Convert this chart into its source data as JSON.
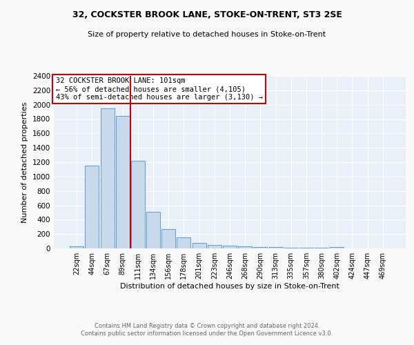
{
  "title1": "32, COCKSTER BROOK LANE, STOKE-ON-TRENT, ST3 2SE",
  "title2": "Size of property relative to detached houses in Stoke-on-Trent",
  "xlabel": "Distribution of detached houses by size in Stoke-on-Trent",
  "ylabel": "Number of detached properties",
  "footer_line1": "Contains HM Land Registry data © Crown copyright and database right 2024.",
  "footer_line2": "Contains public sector information licensed under the Open Government Licence v3.0.",
  "annotation_line1": "32 COCKSTER BROOK LANE: 101sqm",
  "annotation_line2": "← 56% of detached houses are smaller (4,105)",
  "annotation_line3": "43% of semi-detached houses are larger (3,130) →",
  "bar_labels": [
    "22sqm",
    "44sqm",
    "67sqm",
    "89sqm",
    "111sqm",
    "134sqm",
    "156sqm",
    "178sqm",
    "201sqm",
    "223sqm",
    "246sqm",
    "268sqm",
    "290sqm",
    "313sqm",
    "335sqm",
    "357sqm",
    "380sqm",
    "402sqm",
    "424sqm",
    "447sqm",
    "469sqm"
  ],
  "bar_values": [
    30,
    1155,
    1950,
    1840,
    1220,
    510,
    265,
    150,
    80,
    45,
    40,
    25,
    15,
    20,
    10,
    8,
    5,
    20,
    3,
    3,
    2
  ],
  "bar_color": "#c9d9ec",
  "bar_edge_color": "#5b9bd5",
  "vline_x_index": 4,
  "vline_color": "#cc0000",
  "ylim": [
    0,
    2400
  ],
  "yticks": [
    0,
    200,
    400,
    600,
    800,
    1000,
    1200,
    1400,
    1600,
    1800,
    2000,
    2200,
    2400
  ],
  "bg_color": "#eaf0f8",
  "fig_color": "#f9f9f9",
  "annotation_box_color": "#ffffff",
  "annotation_box_edge": "#cc0000"
}
